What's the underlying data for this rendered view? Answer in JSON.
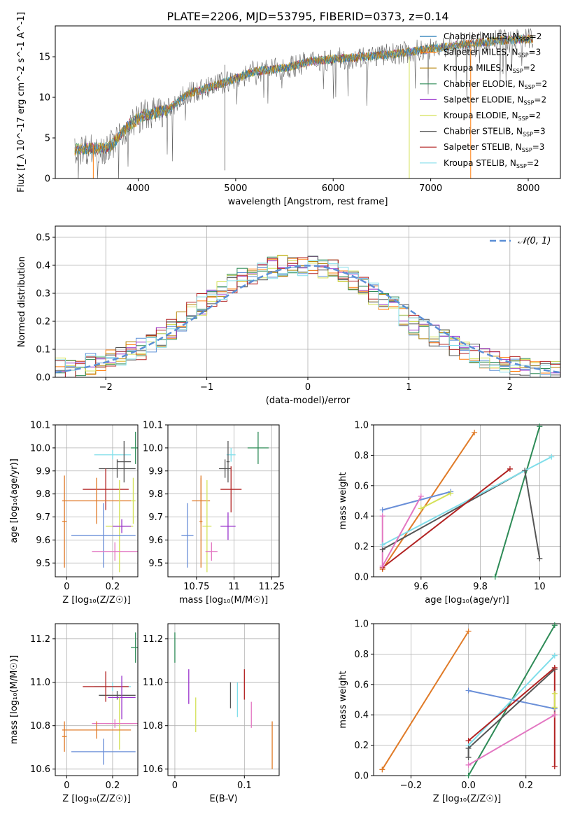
{
  "figure": {
    "title": "PLATE=2206, MJD=53795, FIBERID=0373, z=0.14"
  },
  "colors": {
    "Chabrier MILES": "#1f77b4",
    "Salpeter MILES": "#ff7f0e",
    "Kroupa MILES": "#b8860b",
    "Chabrier ELODIE": "#2e8b57",
    "Salpeter ELODIE": "#9932cc",
    "Kroupa ELODIE": "#d4e157",
    "Chabrier STELIB": "#555555",
    "Salpeter STELIB": "#b22222",
    "Kroupa STELIB": "#80deea",
    "Chabrier MILES panels": "#6a8fd8",
    "Salpeter MILES panels": "#e07b28",
    "Kroupa MILES panels": "#e377c2",
    "Normal curve": "#5b8fd6"
  },
  "chart_data": [
    {
      "type": "line",
      "name": "spectrum",
      "xlabel": "wavelength [Angstrom, rest frame]",
      "ylabel": "Flux [f_λ 10^-17 erg cm^-2 s^-1 A^-1]",
      "xlim": [
        3150,
        8330
      ],
      "ylim": [
        0,
        18.8
      ],
      "xticks": [
        4000,
        5000,
        6000,
        7000,
        8000
      ],
      "yticks": [
        0,
        5,
        10,
        15
      ],
      "grid": false,
      "legend_position": "right",
      "series_meta": [
        {
          "label": "Chabrier MILES, N",
          "sub": "SSP",
          "tail": "=2"
        },
        {
          "label": "Salpeter MILES, N",
          "sub": "SSP",
          "tail": "=3"
        },
        {
          "label": "Kroupa MILES, N",
          "sub": "SSP",
          "tail": "=2"
        },
        {
          "label": "Chabrier ELODIE, N",
          "sub": "SSP",
          "tail": "=2"
        },
        {
          "label": "Salpeter ELODIE, N",
          "sub": "SSP",
          "tail": "=2"
        },
        {
          "label": "Kroupa ELODIE, N",
          "sub": "SSP",
          "tail": "=2"
        },
        {
          "label": "Chabrier STELIB, N",
          "sub": "SSP",
          "tail": "=3"
        },
        {
          "label": "Salpeter STELIB, N",
          "sub": "SSP",
          "tail": "=3"
        },
        {
          "label": "Kroupa STELIB, N",
          "sub": "SSP",
          "tail": "=2"
        }
      ],
      "continuum": [
        [
          3350,
          3.6
        ],
        [
          3700,
          3.8
        ],
        [
          3900,
          6.5
        ],
        [
          4050,
          7.8
        ],
        [
          4300,
          8.4
        ],
        [
          4500,
          10.4
        ],
        [
          4800,
          11.5
        ],
        [
          5000,
          12.3
        ],
        [
          5200,
          13.2
        ],
        [
          5500,
          13.6
        ],
        [
          5800,
          14.5
        ],
        [
          6000,
          14.7
        ],
        [
          6300,
          15.0
        ],
        [
          6600,
          15.3
        ],
        [
          6900,
          15.8
        ],
        [
          7200,
          16.3
        ],
        [
          7400,
          16.6
        ],
        [
          7700,
          17.0
        ],
        [
          8050,
          17.2
        ]
      ]
    },
    {
      "type": "line",
      "name": "residual-histogram",
      "xlabel": "(data-model)/error",
      "ylabel": "Normed distribution",
      "xlim": [
        -2.5,
        2.5
      ],
      "ylim": [
        0,
        0.54
      ],
      "xticks": [
        -2,
        -1,
        0,
        1,
        2
      ],
      "xtick_labels": [
        "−2",
        "−1",
        "0",
        "1",
        "2"
      ],
      "yticks": [
        0,
        0.1,
        0.2,
        0.3,
        0.4,
        0.5
      ],
      "grid": true,
      "legend": "𝒩(0, 1)",
      "legend_position": "top-right",
      "bin_edges": [
        -2.5,
        -2.4,
        -2.3,
        -2.2,
        -2.1,
        -2.0,
        -1.9,
        -1.8,
        -1.7,
        -1.6,
        -1.5,
        -1.4,
        -1.3,
        -1.2,
        -1.1,
        -1.0,
        -0.9,
        -0.8,
        -0.7,
        -0.6,
        -0.5,
        -0.4,
        -0.3,
        -0.2,
        -0.1,
        0.0,
        0.1,
        0.2,
        0.3,
        0.4,
        0.5,
        0.6,
        0.7,
        0.8,
        0.9,
        1.0,
        1.1,
        1.2,
        1.3,
        1.4,
        1.5,
        1.6,
        1.7,
        1.8,
        1.9,
        2.0,
        2.1,
        2.2,
        2.3,
        2.4,
        2.5
      ],
      "base_hist": [
        0.03,
        0.03,
        0.04,
        0.05,
        0.06,
        0.06,
        0.07,
        0.09,
        0.1,
        0.12,
        0.14,
        0.17,
        0.2,
        0.23,
        0.26,
        0.29,
        0.31,
        0.33,
        0.35,
        0.37,
        0.38,
        0.39,
        0.4,
        0.4,
        0.4,
        0.4,
        0.39,
        0.38,
        0.37,
        0.35,
        0.33,
        0.3,
        0.27,
        0.25,
        0.22,
        0.19,
        0.17,
        0.15,
        0.13,
        0.11,
        0.09,
        0.08,
        0.07,
        0.06,
        0.05,
        0.05,
        0.04,
        0.03,
        0.03,
        0.03
      ]
    },
    {
      "type": "scatter",
      "name": "age-vs-Z",
      "xlabel": "Z [log₁₀(Z/Z☉)]",
      "ylabel": "age  [log₁₀(age/yr)]",
      "xlim": [
        -0.05,
        0.31
      ],
      "ylim": [
        9.44,
        10.1
      ],
      "xticks": [
        0.0,
        0.2
      ],
      "yticks": [
        9.5,
        9.6,
        9.7,
        9.8,
        9.9,
        10.0,
        10.1
      ],
      "grid": true,
      "points": [
        {
          "s": "Chabrier ELODIE",
          "x": 0.3,
          "y": 10.0,
          "xerr": 0.02,
          "yerr": 0.07
        },
        {
          "s": "Kroupa STELIB",
          "x": 0.2,
          "y": 9.97,
          "xerr": 0.08,
          "yerr": 0.02
        },
        {
          "s": "Chabrier STELIB",
          "x": 0.25,
          "y": 9.94,
          "xerr": 0.03,
          "yerr": 0.09
        },
        {
          "s": "Chabrier STELIB",
          "x": 0.22,
          "y": 9.91,
          "xerr": 0.08,
          "yerr": 0.04
        },
        {
          "s": "Salpeter STELIB",
          "x": 0.17,
          "y": 9.82,
          "xerr": 0.1,
          "yerr": 0.09
        },
        {
          "s": "Salpeter MILES panels",
          "x": 0.13,
          "y": 9.77,
          "xerr": 0.15,
          "yerr": 0.1
        },
        {
          "s": "Kroupa ELODIE",
          "x": 0.23,
          "y": 9.66,
          "xerr": 0.06,
          "yerr": 0.2
        },
        {
          "s": "Salpeter ELODIE",
          "x": 0.24,
          "y": 9.66,
          "xerr": 0.04,
          "yerr": 0.03
        },
        {
          "s": "Chabrier MILES panels",
          "x": 0.16,
          "y": 9.62,
          "xerr": 0.14,
          "yerr": 0.14
        },
        {
          "s": "Kroupa MILES panels",
          "x": 0.21,
          "y": 9.55,
          "xerr": 0.1,
          "yerr": 0.04
        },
        {
          "s": "Salpeter MILES panels",
          "x": -0.01,
          "y": 9.68,
          "xerr": 0.01,
          "yerr": 0.2
        },
        {
          "s": "Kroupa ELODIE",
          "x": 0.29,
          "y": 9.77,
          "xerr": 0.01,
          "yerr": 0.1
        }
      ]
    },
    {
      "type": "scatter",
      "name": "age-vs-mass",
      "xlabel": "mass [log₁₀(M/M☉)]",
      "ylabel": "",
      "xlim": [
        10.56,
        11.3
      ],
      "ylim": [
        9.44,
        10.1
      ],
      "xticks": [
        10.75,
        11.0,
        11.25
      ],
      "yticks": [
        9.5,
        9.6,
        9.7,
        9.8,
        9.9,
        10.0,
        10.1
      ],
      "grid": true,
      "points": [
        {
          "s": "Chabrier ELODIE",
          "x": 11.16,
          "y": 10.0,
          "xerr": 0.07,
          "yerr": 0.07
        },
        {
          "s": "Kroupa STELIB",
          "x": 10.98,
          "y": 9.97,
          "xerr": 0.03,
          "yerr": 0.03
        },
        {
          "s": "Chabrier STELIB",
          "x": 10.96,
          "y": 9.94,
          "xerr": 0.01,
          "yerr": 0.09
        },
        {
          "s": "Chabrier STELIB",
          "x": 10.94,
          "y": 9.91,
          "xerr": 0.04,
          "yerr": 0.04
        },
        {
          "s": "Salpeter STELIB",
          "x": 10.98,
          "y": 9.82,
          "xerr": 0.07,
          "yerr": 0.1
        },
        {
          "s": "Salpeter MILES panels",
          "x": 10.78,
          "y": 9.77,
          "xerr": 0.06,
          "yerr": 0.1
        },
        {
          "s": "Kroupa ELODIE",
          "x": 10.82,
          "y": 9.66,
          "xerr": 0.03,
          "yerr": 0.2
        },
        {
          "s": "Salpeter ELODIE",
          "x": 10.96,
          "y": 9.66,
          "xerr": 0.05,
          "yerr": 0.06
        },
        {
          "s": "Chabrier MILES panels",
          "x": 10.69,
          "y": 9.62,
          "xerr": 0.04,
          "yerr": 0.14
        },
        {
          "s": "Kroupa MILES panels",
          "x": 10.85,
          "y": 9.55,
          "xerr": 0.04,
          "yerr": 0.04
        },
        {
          "s": "Salpeter MILES panels",
          "x": 10.78,
          "y": 9.68,
          "xerr": 0.01,
          "yerr": 0.2
        }
      ]
    },
    {
      "type": "line",
      "name": "mass-weight-vs-age",
      "xlabel": "age  [log₁₀(age/yr)]",
      "ylabel": "mass weight",
      "xlim": [
        9.44,
        10.07
      ],
      "ylim": [
        0,
        1.0
      ],
      "xticks": [
        9.6,
        9.8,
        10.0
      ],
      "yticks": [
        0,
        0.2,
        0.4,
        0.6,
        0.8,
        1.0
      ],
      "grid": true,
      "lines": [
        {
          "s": "Salpeter MILES panels",
          "pts": [
            [
              9.47,
              0.05
            ],
            [
              9.78,
              0.95
            ]
          ]
        },
        {
          "s": "Chabrier ELODIE",
          "pts": [
            [
              9.85,
              0.0
            ],
            [
              10.0,
              0.99
            ]
          ]
        },
        {
          "s": "Chabrier STELIB",
          "pts": [
            [
              9.47,
              0.18
            ],
            [
              9.95,
              0.7
            ],
            [
              10.0,
              0.12
            ]
          ]
        },
        {
          "s": "Kroupa STELIB",
          "pts": [
            [
              9.47,
              0.21
            ],
            [
              10.04,
              0.79
            ]
          ]
        },
        {
          "s": "Chabrier MILES panels",
          "pts": [
            [
              9.47,
              0.44
            ],
            [
              9.7,
              0.56
            ]
          ]
        },
        {
          "s": "Salpeter STELIB",
          "pts": [
            [
              9.47,
              0.06
            ],
            [
              9.9,
              0.71
            ]
          ]
        },
        {
          "s": "Kroupa MILES panels",
          "pts": [
            [
              9.47,
              0.4
            ],
            [
              9.47,
              0.07
            ],
            [
              9.6,
              0.53
            ]
          ]
        },
        {
          "s": "Kroupa ELODIE",
          "pts": [
            [
              9.6,
              0.45
            ],
            [
              9.7,
              0.55
            ]
          ]
        }
      ]
    },
    {
      "type": "scatter",
      "name": "mass-vs-Z",
      "xlabel": "Z [log₁₀(Z/Z☉)]",
      "ylabel": "mass [log₁₀(M/M☉)]",
      "xlim": [
        -0.05,
        0.31
      ],
      "ylim": [
        10.57,
        11.27
      ],
      "xticks": [
        0.0,
        0.2
      ],
      "yticks": [
        10.6,
        10.8,
        11.0,
        11.2
      ],
      "grid": true,
      "points": [
        {
          "s": "Chabrier ELODIE",
          "x": 0.3,
          "y": 11.16,
          "xerr": 0.02,
          "yerr": 0.07
        },
        {
          "s": "Kroupa STELIB",
          "x": 0.2,
          "y": 10.98,
          "xerr": 0.08,
          "yerr": 0.02
        },
        {
          "s": "Chabrier STELIB",
          "x": 0.22,
          "y": 10.94,
          "xerr": 0.08,
          "yerr": 0.02
        },
        {
          "s": "Salpeter STELIB",
          "x": 0.17,
          "y": 10.98,
          "xerr": 0.1,
          "yerr": 0.07
        },
        {
          "s": "Salpeter ELODIE",
          "x": 0.24,
          "y": 10.93,
          "xerr": 0.06,
          "yerr": 0.1
        },
        {
          "s": "Kroupa ELODIE",
          "x": 0.23,
          "y": 10.81,
          "xerr": 0.06,
          "yerr": 0.12
        },
        {
          "s": "Kroupa MILES panels",
          "x": 0.21,
          "y": 10.81,
          "xerr": 0.1,
          "yerr": 0.02
        },
        {
          "s": "Salpeter MILES panels",
          "x": 0.13,
          "y": 10.78,
          "xerr": 0.15,
          "yerr": 0.04
        },
        {
          "s": "Chabrier MILES panels",
          "x": 0.16,
          "y": 10.68,
          "xerr": 0.14,
          "yerr": 0.06
        },
        {
          "s": "Salpeter MILES panels",
          "x": -0.01,
          "y": 10.75,
          "xerr": 0.01,
          "yerr": 0.07
        }
      ]
    },
    {
      "type": "scatter",
      "name": "mass-vs-EBV",
      "xlabel": "E(B-V)",
      "ylabel": "",
      "xlim": [
        -0.01,
        0.15
      ],
      "ylim": [
        10.57,
        11.27
      ],
      "xticks": [
        0.0,
        0.1
      ],
      "yticks": [
        10.6,
        10.8,
        11.0,
        11.2
      ],
      "grid": true,
      "points": [
        {
          "s": "Chabrier ELODIE",
          "x": 0.0,
          "y": 11.16,
          "xerr": 0.0,
          "yerr": 0.07
        },
        {
          "s": "Salpeter ELODIE",
          "x": 0.02,
          "y": 10.98,
          "xerr": 0.0,
          "yerr": 0.08
        },
        {
          "s": "Kroupa ELODIE",
          "x": 0.03,
          "y": 10.85,
          "xerr": 0.0,
          "yerr": 0.08
        },
        {
          "s": "Chabrier STELIB",
          "x": 0.08,
          "y": 10.94,
          "xerr": 0.0,
          "yerr": 0.06
        },
        {
          "s": "Kroupa STELIB",
          "x": 0.09,
          "y": 10.92,
          "xerr": 0.0,
          "yerr": 0.08
        },
        {
          "s": "Salpeter STELIB",
          "x": 0.1,
          "y": 10.99,
          "xerr": 0.0,
          "yerr": 0.07
        },
        {
          "s": "Kroupa MILES panels",
          "x": 0.11,
          "y": 10.85,
          "xerr": 0.0,
          "yerr": 0.06
        },
        {
          "s": "Salpeter MILES panels",
          "x": 0.14,
          "y": 10.71,
          "xerr": 0.0,
          "yerr": 0.11
        }
      ]
    },
    {
      "type": "line",
      "name": "mass-weight-vs-Z",
      "xlabel": "Z [log₁₀(Z/Z☉)]",
      "ylabel": "mass weight",
      "xlim": [
        -0.33,
        0.32
      ],
      "ylim": [
        0,
        1.0
      ],
      "xticks": [
        -0.2,
        0.0,
        0.2
      ],
      "xtick_labels": [
        "−0.2",
        "0.0",
        "0.2"
      ],
      "yticks": [
        0,
        0.2,
        0.4,
        0.6,
        0.8,
        1.0
      ],
      "grid": true,
      "lines": [
        {
          "s": "Salpeter MILES panels",
          "pts": [
            [
              -0.3,
              0.04
            ],
            [
              0.0,
              0.95
            ]
          ]
        },
        {
          "s": "Chabrier ELODIE",
          "pts": [
            [
              0.0,
              0.0
            ],
            [
              0.3,
              0.99
            ]
          ]
        },
        {
          "s": "Chabrier MILES panels",
          "pts": [
            [
              0.0,
              0.56
            ],
            [
              0.3,
              0.44
            ]
          ]
        },
        {
          "s": "Kroupa STELIB",
          "pts": [
            [
              0.0,
              0.2
            ],
            [
              0.3,
              0.79
            ]
          ]
        },
        {
          "s": "Chabrier STELIB",
          "pts": [
            [
              0.0,
              0.12
            ],
            [
              0.0,
              0.18
            ],
            [
              0.3,
              0.7
            ]
          ]
        },
        {
          "s": "Salpeter STELIB",
          "pts": [
            [
              0.0,
              0.23
            ],
            [
              0.3,
              0.71
            ],
            [
              0.3,
              0.06
            ]
          ]
        },
        {
          "s": "Kroupa MILES panels",
          "pts": [
            [
              0.0,
              0.07
            ],
            [
              0.3,
              0.4
            ]
          ]
        },
        {
          "s": "Kroupa ELODIE",
          "pts": [
            [
              0.3,
              0.54
            ],
            [
              0.3,
              0.45
            ]
          ]
        }
      ]
    }
  ]
}
